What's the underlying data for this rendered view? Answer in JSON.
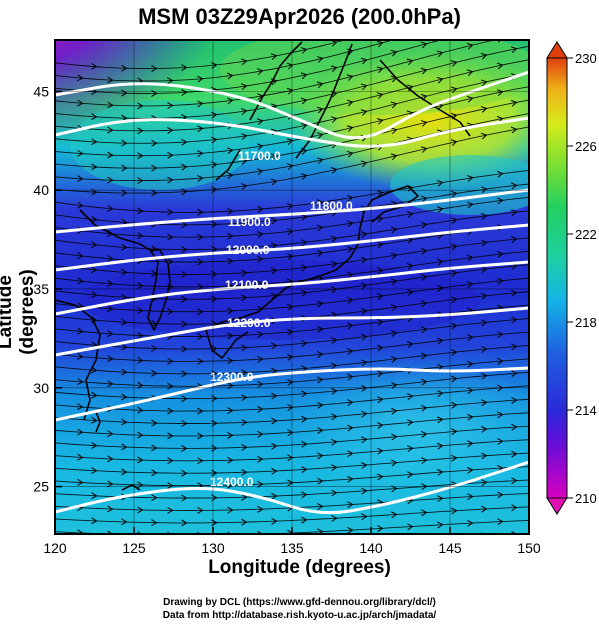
{
  "title": "MSM 03Z29Apr2026 (200.0hPa)",
  "x_axis": {
    "label": "Longitude (degrees)",
    "ticks": [
      "120",
      "125",
      "130",
      "135",
      "140",
      "145",
      "150"
    ]
  },
  "y_axis": {
    "label": "Latitude  (degrees)",
    "ticks": [
      "25",
      "30",
      "35",
      "40",
      "45"
    ]
  },
  "colorbar": {
    "ticks": [
      "210",
      "214",
      "218",
      "222",
      "226",
      "230"
    ],
    "colors": [
      "#cc00cc",
      "#2a2ad8",
      "#14b4e6",
      "#22d060",
      "#c6ea1a",
      "#e06010"
    ]
  },
  "contours": [
    {
      "label": "11700.0"
    },
    {
      "label": "11800.0"
    },
    {
      "label": "11900.0"
    },
    {
      "label": "12000.0"
    },
    {
      "label": "12100.0"
    },
    {
      "label": "12200.0"
    },
    {
      "label": "12300.0"
    },
    {
      "label": "12400.0"
    }
  ],
  "credits": [
    "Drawing by DCL (https://www.gfd-dennou.org/library/dcl/)",
    "Data from http://database.rish.kyoto-u.ac.jp/arch/jmadata/"
  ]
}
